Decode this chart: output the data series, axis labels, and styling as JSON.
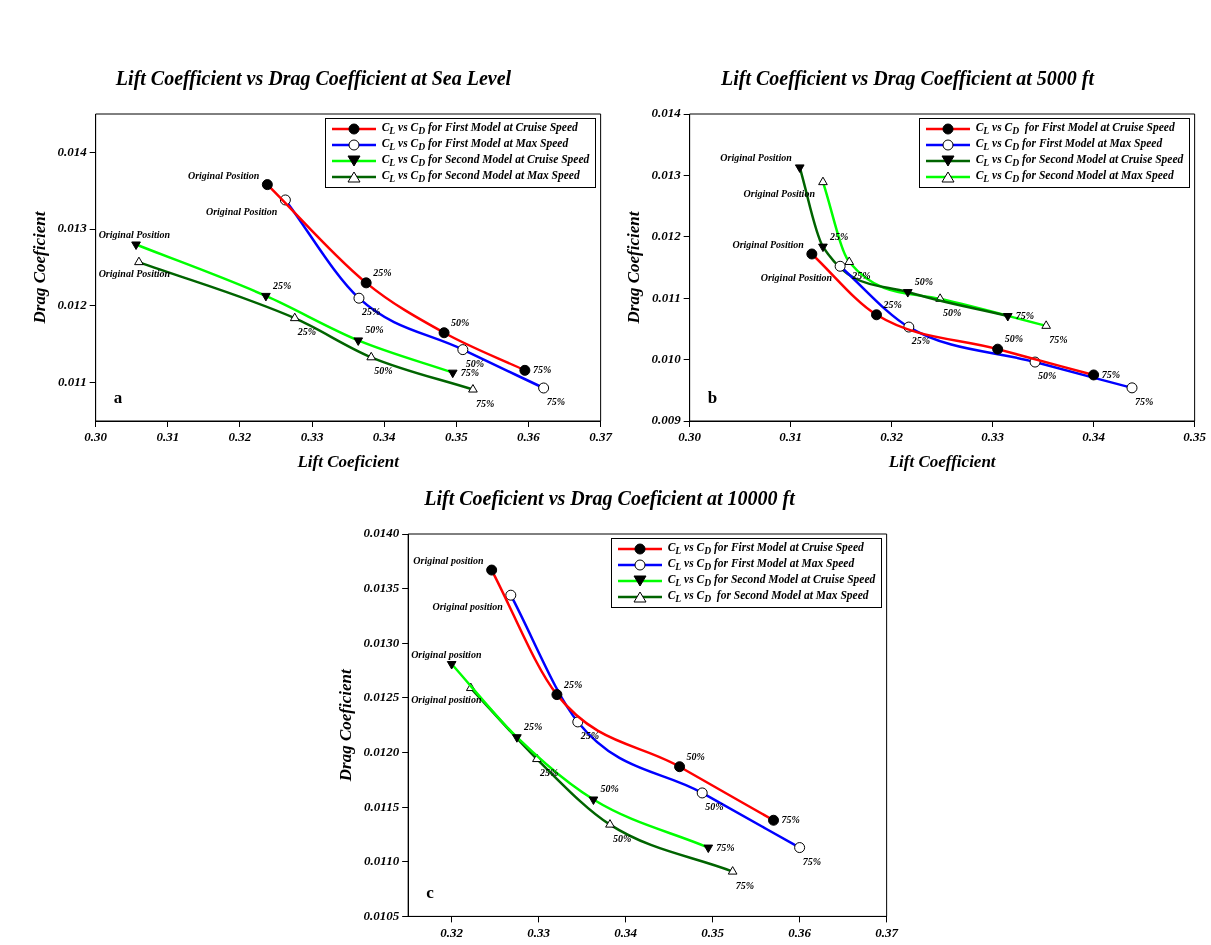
{
  "chart_data": [
    {
      "type": "line",
      "title": "Lift Coefficient vs Drag Coefficient at Sea Level",
      "xlabel": "Lift Coeficient",
      "ylabel": "Drag Coeficient",
      "xlim": [
        0.3,
        0.37
      ],
      "xticks": [
        {
          "value": 0.3,
          "label": "0.30"
        },
        0.31,
        0.32,
        0.33,
        0.34,
        0.35,
        0.36,
        0.37
      ],
      "ylim": [
        0.0105,
        0.0145
      ],
      "yticks": [
        0.011,
        0.012,
        0.013,
        0.014
      ],
      "legend": "top right",
      "series": [
        {
          "name": "C$_{L}$ vs C$_{D}$ for First Model at Cruise Speed",
          "color": "#ff0000",
          "marker": "circle",
          "x": [
            0.3238,
            0.3375,
            0.3483,
            0.3595
          ],
          "values": [
            0.01358,
            0.0123,
            0.01165,
            0.01116
          ]
        },
        {
          "name": "C$_{L}$ vs C$_{D}$ for First Model at Max Speed",
          "color": "#0000ff",
          "marker": "circle",
          "x": [
            0.3263,
            0.3365,
            0.3509,
            0.3621
          ],
          "values": [
            0.01338,
            0.0121,
            0.01143,
            0.01093
          ]
        },
        {
          "name": "C$_{L}$ vs C$_{D}$ for Second Model at Cruise Speed",
          "color": "#00ff00",
          "marker": "triangle",
          "x": [
            0.3056,
            0.3236,
            0.3364,
            0.3495
          ],
          "values": [
            0.0128,
            0.01213,
            0.01155,
            0.01113
          ]
        },
        {
          "name": "C$_{L}$ vs C$_{D}$ for Second Model at Max Speed",
          "color": "#006400",
          "marker": "triangle",
          "x": [
            0.306,
            0.3276,
            0.3382,
            0.3523
          ],
          "values": [
            0.01257,
            0.01184,
            0.01133,
            0.01091
          ]
        }
      ],
      "annotations": [
        "a",
        {
          "text": "Original Position",
          "x": 0.3238,
          "y": 0.01358
        },
        {
          "text": "25%",
          "x": 0.3375,
          "y": 0.0123
        },
        {
          "text": "50%",
          "x": 0.3483,
          "y": 0.01165
        },
        {
          "text": "75%",
          "x": 0.3595,
          "y": 0.01116
        },
        {
          "text": "Original Position",
          "x": 0.3263,
          "y": 0.01338
        },
        {
          "text": "25%",
          "x": 0.3365,
          "y": 0.0121
        },
        {
          "text": "50%",
          "x": 0.3509,
          "y": 0.01143
        },
        {
          "text": "75%",
          "x": 0.3621,
          "y": 0.01093
        },
        {
          "text": "Original Position",
          "x": 0.3056,
          "y": 0.0128
        },
        {
          "text": "25%",
          "x": 0.3236,
          "y": 0.01213
        },
        {
          "text": "50%",
          "x": 0.3364,
          "y": 0.01155
        },
        {
          "text": "75%",
          "x": 0.3495,
          "y": 0.01113
        },
        {
          "text": "Original Position",
          "x": 0.306,
          "y": 0.01257
        },
        {
          "text": "25%",
          "x": 0.3276,
          "y": 0.01184
        },
        {
          "text": "50%",
          "x": 0.3382,
          "y": 0.01133
        },
        {
          "text": "75%",
          "x": 0.3523,
          "y": 0.01091
        }
      ]
    },
    {
      "type": "line",
      "title": "Lift Coefficient vs Drag Coefficient at 5000 ft",
      "xlabel": "Lift Coefficient",
      "ylabel": "Drag Coeficient",
      "xlim": [
        0.3,
        0.35
      ],
      "xticks": [
        {
          "value": 0.3,
          "label": "0.30"
        },
        0.31,
        0.32,
        0.33,
        0.34,
        0.35
      ],
      "ylim": [
        0.009,
        0.014
      ],
      "yticks": [
        0.009,
        {
          "value": 0.01,
          "label": "0.010"
        },
        0.011,
        0.012,
        0.013,
        0.014
      ],
      "legend": "top right",
      "series": [
        {
          "name": "C$_{L}$ vs C$_{D}$  for First Model at Cruise Speed",
          "color": "#ff0000",
          "marker": "circle",
          "x": [
            0.3121,
            0.3185,
            0.3305,
            0.34
          ],
          "values": [
            0.01172,
            0.01073,
            0.01017,
            0.00975
          ]
        },
        {
          "name": "C$_{L}$ vs C$_{D}$ for First Model at Max Speed",
          "color": "#0000ff",
          "marker": "circle",
          "x": [
            0.3149,
            0.3217,
            0.3342,
            0.3438
          ],
          "values": [
            0.01152,
            0.01053,
            0.00996,
            0.00954
          ]
        },
        {
          "name": "C$_{L}$ vs C$_{D}$ for Second Model at Cruise Speed",
          "color": "#006400",
          "marker": "triangle",
          "x": [
            0.3109,
            0.3132,
            0.3216,
            0.3315
          ],
          "values": [
            0.01313,
            0.01184,
            0.0111,
            0.01071
          ]
        },
        {
          "name": "C$_{L}$ vs C$_{D}$ for Second Model at Max Speed",
          "color": "#00ff00",
          "marker": "triangle",
          "x": [
            0.3132,
            0.3158,
            0.3248,
            0.3353
          ],
          "values": [
            0.01289,
            0.01159,
            0.01099,
            0.01055
          ]
        }
      ],
      "annotations": [
        "b",
        {
          "text": "Original Position",
          "x": 0.3121,
          "y": 0.01172
        },
        {
          "text": "25%",
          "x": 0.3185,
          "y": 0.01073
        },
        {
          "text": "50%",
          "x": 0.3305,
          "y": 0.01017
        },
        {
          "text": "75%",
          "x": 0.34,
          "y": 0.00975
        },
        {
          "text": "Original Position",
          "x": 0.3149,
          "y": 0.01152
        },
        {
          "text": "25%",
          "x": 0.3217,
          "y": 0.01053
        },
        {
          "text": "50%",
          "x": 0.3342,
          "y": 0.00996
        },
        {
          "text": "75%",
          "x": 0.3438,
          "y": 0.00954
        },
        {
          "text": "Original Position",
          "x": 0.3109,
          "y": 0.01313
        },
        {
          "text": "25%",
          "x": 0.3132,
          "y": 0.01184
        },
        {
          "text": "50%",
          "x": 0.3216,
          "y": 0.0111
        },
        {
          "text": "75%",
          "x": 0.3315,
          "y": 0.01071
        },
        {
          "text": "Original Position",
          "x": 0.3132,
          "y": 0.01289
        },
        {
          "text": "25%",
          "x": 0.3158,
          "y": 0.01159
        },
        {
          "text": "50%",
          "x": 0.3248,
          "y": 0.01099
        },
        {
          "text": "75%",
          "x": 0.3353,
          "y": 0.01055
        }
      ]
    },
    {
      "type": "line",
      "title": "Lift Coeficient vs Drag Coeficient at 10000 ft",
      "ylabel": "Drag Coeficient",
      "xlim": [
        0.315,
        0.37
      ],
      "xticks": [
        0.32,
        0.33,
        0.34,
        0.35,
        0.36,
        0.37
      ],
      "ylim": [
        0.0105,
        0.014
      ],
      "yticks": [
        {
          "value": 0.0105,
          "label": "0.0105"
        },
        {
          "value": 0.011,
          "label": "0.0110"
        },
        {
          "value": 0.0115,
          "label": "0.0115"
        },
        {
          "value": 0.012,
          "label": "0.0120"
        },
        {
          "value": 0.0125,
          "label": "0.0125"
        },
        {
          "value": 0.013,
          "label": "0.0130"
        },
        {
          "value": 0.0135,
          "label": "0.0135"
        },
        {
          "value": 0.014,
          "label": "0.0140"
        }
      ],
      "legend": "top right",
      "series": [
        {
          "name": "C$_{L}$ vs C$_{D}$ for First Model at Cruise Speed",
          "color": "#ff0000",
          "marker": "circle",
          "x": [
            0.3246,
            0.3321,
            0.3462,
            0.357
          ],
          "values": [
            0.01367,
            0.01253,
            0.01187,
            0.01138
          ]
        },
        {
          "name": "C$_{L}$ vs C$_{D}$ for First Model at Max Speed",
          "color": "#0000ff",
          "marker": "circle",
          "x": [
            0.3268,
            0.3345,
            0.3488,
            0.36
          ],
          "values": [
            0.01344,
            0.01228,
            0.01163,
            0.01113
          ]
        },
        {
          "name": "C$_{L}$ vs C$_{D}$ for Second Model at Cruise Speed",
          "color": "#00ff00",
          "marker": "triangle",
          "x": [
            0.32,
            0.3275,
            0.3363,
            0.3495
          ],
          "values": [
            0.01281,
            0.01214,
            0.01157,
            0.01113
          ]
        },
        {
          "name": "C$_{L}$ vs C$_{D}$  for Second Model at Max Speed",
          "color": "#006400",
          "marker": "triangle",
          "x": [
            0.3222,
            0.3298,
            0.3382,
            0.3523
          ],
          "values": [
            0.01259,
            0.01194,
            0.01134,
            0.01091
          ]
        }
      ],
      "annotations": [
        "c",
        {
          "text": "Original position",
          "x": 0.3246,
          "y": 0.01367
        },
        {
          "text": "25%",
          "x": 0.3321,
          "y": 0.01253
        },
        {
          "text": "50%",
          "x": 0.3462,
          "y": 0.01187
        },
        {
          "text": "75%",
          "x": 0.357,
          "y": 0.01138
        },
        {
          "text": "Original position",
          "x": 0.3268,
          "y": 0.01344
        },
        {
          "text": "25%",
          "x": 0.3345,
          "y": 0.01228
        },
        {
          "text": "50%",
          "x": 0.3488,
          "y": 0.01163
        },
        {
          "text": "75%",
          "x": 0.36,
          "y": 0.01113
        },
        {
          "text": "Original position",
          "x": 0.32,
          "y": 0.01281
        },
        {
          "text": "25%",
          "x": 0.3275,
          "y": 0.01214
        },
        {
          "text": "50%",
          "x": 0.3363,
          "y": 0.01157
        },
        {
          "text": "75%",
          "x": 0.3495,
          "y": 0.01113
        },
        {
          "text": "Original position",
          "x": 0.3222,
          "y": 0.01259
        },
        {
          "text": "25%",
          "x": 0.3298,
          "y": 0.01194
        },
        {
          "text": "50%",
          "x": 0.3382,
          "y": 0.01134
        },
        {
          "text": "75%",
          "x": 0.3523,
          "y": 0.01091
        }
      ]
    }
  ]
}
